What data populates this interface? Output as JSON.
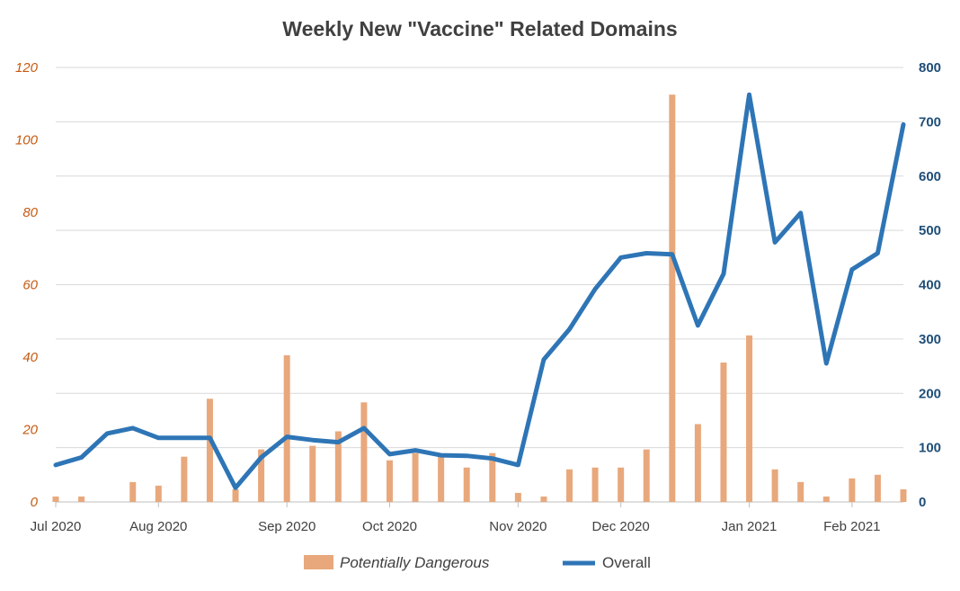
{
  "chart_data": {
    "type": "bar",
    "title": "Weekly New \"Vaccine\" Related Domains",
    "x_tick_labels": [
      "Jul 2020",
      "Aug 2020",
      "Sep 2020",
      "Oct 2020",
      "Nov 2020",
      "Dec 2020",
      "Jan 2021",
      "Feb 2021"
    ],
    "x_tick_week_index": [
      0,
      4,
      9,
      13,
      18,
      22,
      27,
      31
    ],
    "y_left": {
      "ticks": [
        "0",
        "20",
        "40",
        "60",
        "80",
        "100",
        "120"
      ],
      "range": [
        0,
        120
      ]
    },
    "y_right": {
      "ticks": [
        "0",
        "100",
        "200",
        "300",
        "400",
        "500",
        "600",
        "700",
        "800"
      ],
      "range": [
        0,
        800
      ]
    },
    "grid": true,
    "legend_position": "bottom",
    "series": [
      {
        "name": "Potentially Dangerous",
        "kind": "bar",
        "axis": "left",
        "color": "#e8a87c",
        "values": [
          1.5,
          1.5,
          0,
          5.5,
          4.5,
          12.5,
          28.5,
          3.5,
          14.5,
          40.5,
          15.5,
          19.5,
          27.5,
          11.5,
          13.5,
          12.5,
          9.5,
          13.5,
          2.5,
          1.5,
          9,
          9.5,
          9.5,
          14.5,
          112.5,
          21.5,
          38.5,
          46,
          9,
          5.5,
          1.5,
          6.5,
          7.5,
          3.5
        ]
      },
      {
        "name": "Overall",
        "kind": "line",
        "axis": "right",
        "color": "#2e75b6",
        "values": [
          68,
          82,
          126,
          136,
          118,
          118,
          118,
          26,
          82,
          120,
          114,
          110,
          136,
          88,
          95,
          86,
          85,
          80,
          68,
          262,
          318,
          392,
          450,
          458,
          456,
          325,
          420,
          750,
          478,
          532,
          255,
          428,
          458,
          695
        ]
      }
    ]
  }
}
